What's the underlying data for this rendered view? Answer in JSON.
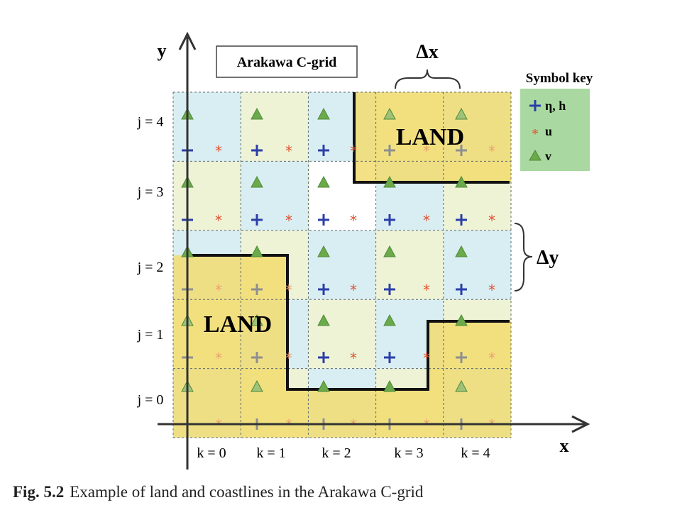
{
  "figure": {
    "title": "Arakawa C-grid",
    "axis_x_label": "x",
    "axis_y_label": "y",
    "delta_x_label": "Δx",
    "delta_y_label": "Δy",
    "land_label": "LAND",
    "row_labels": [
      "j = 0",
      "j = 1",
      "j = 2",
      "j = 3",
      "j = 4"
    ],
    "col_labels": [
      "k = 0",
      "k = 1",
      "k = 2",
      "k = 3",
      "k = 4"
    ],
    "legend": {
      "title": "Symbol key",
      "items": [
        {
          "symbol": "+",
          "label": "η, h"
        },
        {
          "symbol": "*",
          "label": "u"
        },
        {
          "symbol": "triangle",
          "label": "v"
        }
      ]
    },
    "colors": {
      "eta_h": "#2b3fa8",
      "u": "#e0502e",
      "v": "#6aaa4a",
      "land": "#f2dc70",
      "cell_blue": "#d9eef3",
      "cell_green": "#eef3d6",
      "legend_bg": "#a9d9a1"
    }
  },
  "caption": {
    "number": "Fig. 5.2",
    "text": "Example of land and coastlines in the Arakawa C-grid"
  }
}
